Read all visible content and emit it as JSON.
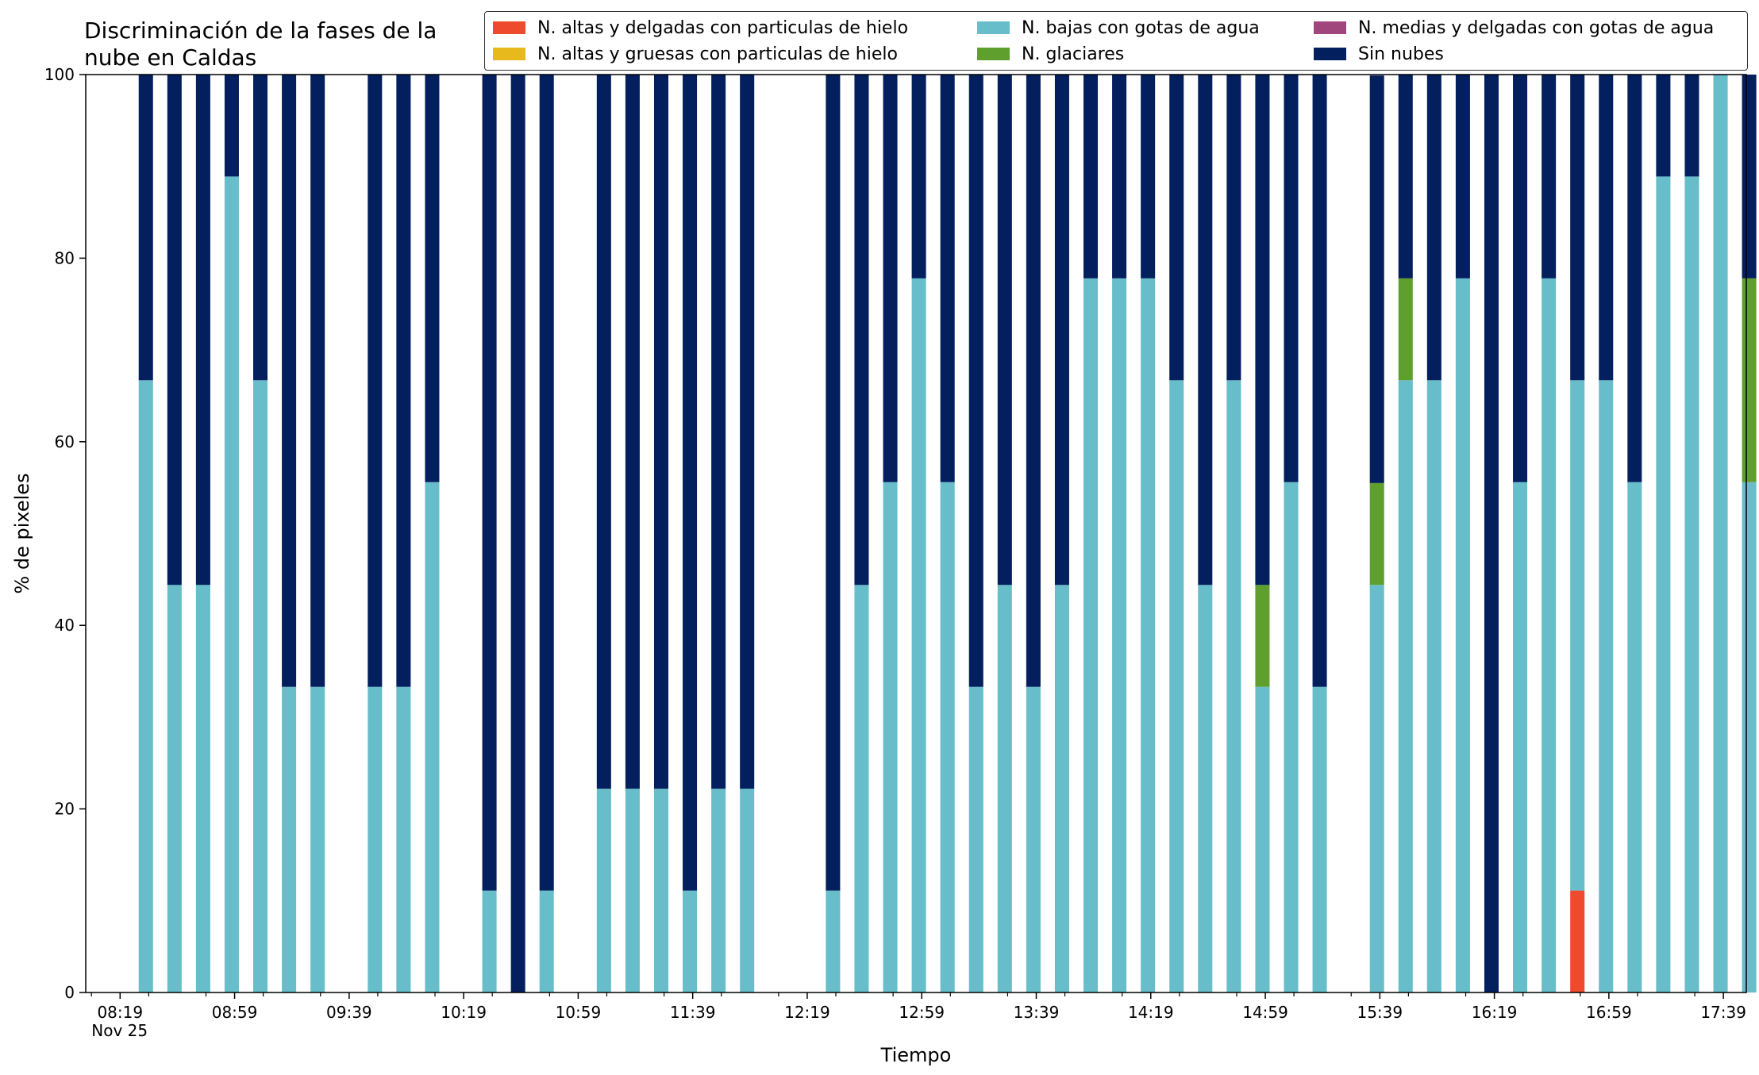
{
  "chart_data": {
    "type": "bar",
    "stacked": true,
    "title_lines": [
      "Discriminación de la fases de la",
      "nube en Caldas"
    ],
    "xlabel": "Tiempo",
    "ylabel": "% de pixeles",
    "ylim": [
      0,
      100
    ],
    "yticks": [
      0,
      20,
      40,
      60,
      80,
      100
    ],
    "grid": false,
    "legend_position": "top-right",
    "x_unit": "minutes after 08:19 (Nov 25)",
    "xlim": [
      -12,
      568
    ],
    "xticks": [
      {
        "t": 0,
        "label": "08:19",
        "sublabel": "Nov 25"
      },
      {
        "t": 40,
        "label": "08:59"
      },
      {
        "t": 80,
        "label": "09:39"
      },
      {
        "t": 120,
        "label": "10:19"
      },
      {
        "t": 160,
        "label": "10:59"
      },
      {
        "t": 200,
        "label": "11:39"
      },
      {
        "t": 240,
        "label": "12:19"
      },
      {
        "t": 280,
        "label": "12:59"
      },
      {
        "t": 320,
        "label": "13:39"
      },
      {
        "t": 360,
        "label": "14:19"
      },
      {
        "t": 400,
        "label": "14:59"
      },
      {
        "t": 440,
        "label": "15:39"
      },
      {
        "t": 480,
        "label": "16:19"
      },
      {
        "t": 520,
        "label": "16:59"
      },
      {
        "t": 560,
        "label": "17:39"
      }
    ],
    "bar_width_minutes": 5,
    "series": [
      {
        "name": "N. altas y delgadas con particulas de hielo",
        "color": "#EE4A2E"
      },
      {
        "name": "N. altas y gruesas con particulas de hielo",
        "color": "#E8B91C"
      },
      {
        "name": "N. bajas con gotas de agua",
        "color": "#67BDC9"
      },
      {
        "name": "N. glaciares",
        "color": "#5E9F2E"
      },
      {
        "name": "N. medias y delgadas con gotas de agua",
        "color": "#A1467C"
      },
      {
        "name": "Sin nubes",
        "color": "#031F5E"
      }
    ],
    "stack_order": [
      "N. altas y delgadas con particulas de hielo",
      "N. altas y gruesas con particulas de hielo",
      "N. bajas con gotas de agua",
      "N. glaciares",
      "N. medias y delgadas con gotas de agua",
      "Sin nubes"
    ],
    "bars": [
      {
        "t": 9,
        "values": [
          0,
          0,
          66.7,
          0,
          0,
          33.3
        ]
      },
      {
        "t": 19,
        "values": [
          0,
          0,
          44.4,
          0,
          0,
          55.6
        ]
      },
      {
        "t": 29,
        "values": [
          0,
          0,
          44.4,
          0,
          0,
          55.6
        ]
      },
      {
        "t": 39,
        "values": [
          0,
          0,
          88.9,
          0,
          0,
          11.1
        ]
      },
      {
        "t": 49,
        "values": [
          0,
          0,
          66.7,
          0,
          0,
          33.3
        ]
      },
      {
        "t": 59,
        "values": [
          0,
          0,
          33.3,
          0,
          0,
          66.7
        ]
      },
      {
        "t": 69,
        "values": [
          0,
          0,
          33.3,
          0,
          0,
          66.7
        ]
      },
      {
        "t": 89,
        "values": [
          0,
          0,
          33.3,
          0,
          0,
          66.7
        ]
      },
      {
        "t": 99,
        "values": [
          0,
          0,
          33.3,
          0,
          0,
          66.7
        ]
      },
      {
        "t": 109,
        "values": [
          0,
          0,
          55.6,
          0,
          0,
          44.4
        ]
      },
      {
        "t": 129,
        "values": [
          0,
          0,
          11.1,
          0,
          0,
          88.9
        ]
      },
      {
        "t": 139,
        "values": [
          0,
          0,
          0,
          0,
          0,
          100
        ]
      },
      {
        "t": 149,
        "values": [
          0,
          0,
          11.1,
          0,
          0,
          88.9
        ]
      },
      {
        "t": 169,
        "values": [
          0,
          0,
          22.2,
          0,
          0,
          77.8
        ]
      },
      {
        "t": 179,
        "values": [
          0,
          0,
          22.2,
          0,
          0,
          77.8
        ]
      },
      {
        "t": 189,
        "values": [
          0,
          0,
          22.2,
          0,
          0,
          77.8
        ]
      },
      {
        "t": 199,
        "values": [
          0,
          0,
          11.1,
          0,
          0,
          88.9
        ]
      },
      {
        "t": 209,
        "values": [
          0,
          0,
          22.2,
          0,
          0,
          77.8
        ]
      },
      {
        "t": 219,
        "values": [
          0,
          0,
          22.2,
          0,
          0,
          77.8
        ]
      },
      {
        "t": 249,
        "values": [
          0,
          0,
          11.1,
          0,
          0,
          88.9
        ]
      },
      {
        "t": 259,
        "values": [
          0,
          0,
          44.4,
          0,
          0,
          55.6
        ]
      },
      {
        "t": 269,
        "values": [
          0,
          0,
          55.6,
          0,
          0,
          44.4
        ]
      },
      {
        "t": 279,
        "values": [
          0,
          0,
          77.8,
          0,
          0,
          22.2
        ]
      },
      {
        "t": 289,
        "values": [
          0,
          0,
          55.6,
          0,
          0,
          44.4
        ]
      },
      {
        "t": 299,
        "values": [
          0,
          0,
          33.3,
          0,
          0,
          66.7
        ]
      },
      {
        "t": 309,
        "values": [
          0,
          0,
          44.4,
          0,
          0,
          55.6
        ]
      },
      {
        "t": 319,
        "values": [
          0,
          0,
          33.3,
          0,
          0,
          66.7
        ]
      },
      {
        "t": 329,
        "values": [
          0,
          0,
          44.4,
          0,
          0,
          55.6
        ]
      },
      {
        "t": 339,
        "values": [
          0,
          0,
          77.8,
          0,
          0,
          22.2
        ]
      },
      {
        "t": 349,
        "values": [
          0,
          0,
          77.8,
          0,
          0,
          22.2
        ]
      },
      {
        "t": 359,
        "values": [
          0,
          0,
          77.8,
          0,
          0,
          22.2
        ]
      },
      {
        "t": 369,
        "values": [
          0,
          0,
          66.7,
          0,
          0,
          33.3
        ]
      },
      {
        "t": 379,
        "values": [
          0,
          0,
          44.4,
          0,
          0,
          55.6
        ]
      },
      {
        "t": 389,
        "values": [
          0,
          0,
          66.7,
          0,
          0,
          33.3
        ]
      },
      {
        "t": 399,
        "values": [
          0,
          0,
          33.3,
          11.1,
          0,
          55.6
        ]
      },
      {
        "t": 409,
        "values": [
          0,
          0,
          55.6,
          0,
          0,
          44.4
        ]
      },
      {
        "t": 419,
        "values": [
          0,
          0,
          33.3,
          0,
          0,
          66.7
        ]
      },
      {
        "t": 439,
        "values": [
          0,
          0,
          44.4,
          11.1,
          0,
          44.4
        ]
      },
      {
        "t": 449,
        "values": [
          0,
          0,
          66.7,
          11.1,
          0,
          22.2
        ]
      },
      {
        "t": 459,
        "values": [
          0,
          0,
          66.7,
          0,
          0,
          33.3
        ]
      },
      {
        "t": 469,
        "values": [
          0,
          0,
          77.8,
          0,
          0,
          22.2
        ]
      },
      {
        "t": 479,
        "values": [
          0,
          0,
          0,
          0,
          0,
          100
        ]
      },
      {
        "t": 489,
        "values": [
          0,
          0,
          55.6,
          0,
          0,
          44.4
        ]
      },
      {
        "t": 499,
        "values": [
          0,
          0,
          77.8,
          0,
          0,
          22.2
        ]
      },
      {
        "t": 509,
        "values": [
          11.1,
          0,
          55.6,
          0,
          0,
          33.3
        ]
      },
      {
        "t": 519,
        "values": [
          0,
          0,
          66.7,
          0,
          0,
          33.3
        ]
      },
      {
        "t": 529,
        "values": [
          0,
          0,
          55.6,
          0,
          0,
          44.4
        ]
      },
      {
        "t": 539,
        "values": [
          0,
          0,
          88.9,
          0,
          0,
          11.1
        ]
      },
      {
        "t": 549,
        "values": [
          0,
          0,
          88.9,
          0,
          0,
          11.1
        ]
      },
      {
        "t": 559,
        "values": [
          0,
          0,
          100,
          0,
          0,
          0
        ]
      },
      {
        "t": 569,
        "values": [
          0,
          0,
          55.6,
          22.2,
          0,
          22.2
        ]
      }
    ]
  }
}
